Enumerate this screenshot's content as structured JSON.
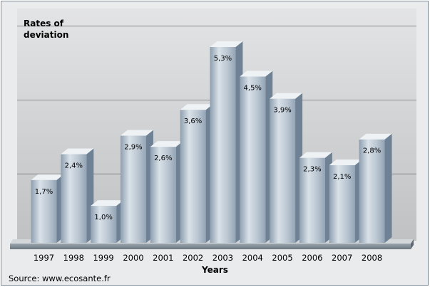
{
  "chart_data": {
    "type": "bar",
    "categories": [
      "1997",
      "1998",
      "1999",
      "2000",
      "2001",
      "2002",
      "2003",
      "2004",
      "2005",
      "2006",
      "2007",
      "2008"
    ],
    "values": [
      1.7,
      2.4,
      1.0,
      2.9,
      2.6,
      3.6,
      5.3,
      4.5,
      3.9,
      2.3,
      2.1,
      2.8
    ],
    "value_labels": [
      "1,7%",
      "2,4%",
      "1,0%",
      "2,9%",
      "2,6%",
      "3,6%",
      "5,3%",
      "4,5%",
      "3,9%",
      "2,3%",
      "2,1%",
      "2,8%"
    ],
    "ylabel_lines": [
      "Rates of",
      "deviation"
    ],
    "xlabel": "Years",
    "ylim": [
      0,
      6
    ],
    "grid": true,
    "legend": "none",
    "colors": {
      "bar_front_light": "#d9e1e8",
      "bar_front_dark": "#8e9fb0",
      "bar_top": "#eef2f5",
      "bar_side": "#6f8295",
      "plot_back": "#c7c9cb",
      "frame_bg": "#e9ebec",
      "grid": "#8a8c8e"
    }
  },
  "source_text": "Source: www.ecosante.fr"
}
